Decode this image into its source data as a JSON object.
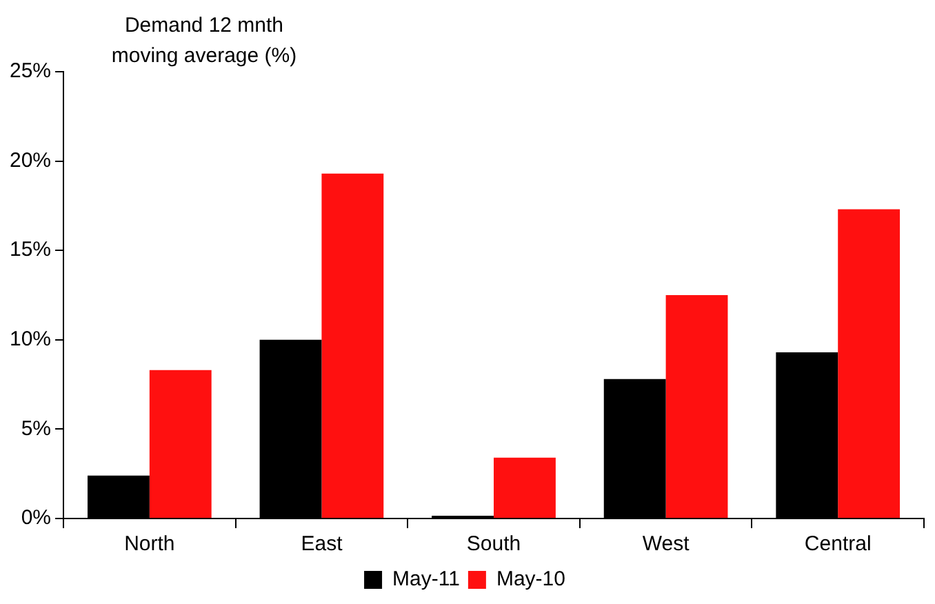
{
  "chart_data": {
    "type": "bar",
    "ylabel": "Demand 12 mnth moving average (%)",
    "categories": [
      "North",
      "East",
      "South",
      "West",
      "Central"
    ],
    "series": [
      {
        "name": "May-11",
        "color": "#000000",
        "values": [
          2.4,
          10.0,
          0.15,
          7.8,
          9.3
        ]
      },
      {
        "name": "May-10",
        "color": "#ff1010",
        "values": [
          8.3,
          19.3,
          3.4,
          12.5,
          17.3
        ]
      }
    ],
    "ylim": [
      0,
      25
    ],
    "yticks": [
      {
        "value": 0,
        "label": "0%"
      },
      {
        "value": 5,
        "label": "5%"
      },
      {
        "value": 10,
        "label": "10%"
      },
      {
        "value": 15,
        "label": "15%"
      },
      {
        "value": 20,
        "label": "20%"
      },
      {
        "value": 25,
        "label": "25%"
      }
    ],
    "grid": false,
    "legend": "bottom"
  }
}
